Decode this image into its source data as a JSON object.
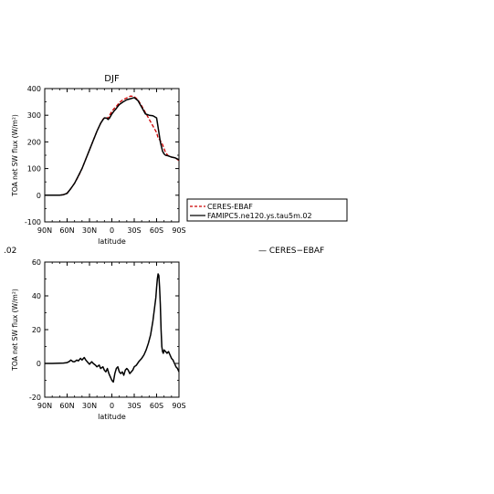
{
  "chart_data": [
    {
      "type": "line",
      "title": "DJF",
      "xlabel": "latitude",
      "ylabel": "TOA net SW flux (W/m²)",
      "xlim": [
        -90,
        90
      ],
      "ylim": [
        -100,
        400
      ],
      "x_ticks": [
        -90,
        -60,
        -30,
        0,
        30,
        60,
        90
      ],
      "x_tick_labels": [
        "90N",
        "60N",
        "30N",
        "0",
        "30S",
        "60S",
        "90S"
      ],
      "y_ticks": [
        -100,
        0,
        100,
        200,
        300,
        400
      ],
      "legend_position": "right",
      "series": [
        {
          "name": "CERES-EBAF",
          "color": "#cc0000",
          "dash": "dashed",
          "x": [
            -90,
            -80,
            -70,
            -65,
            -60,
            -55,
            -50,
            -45,
            -40,
            -35,
            -30,
            -25,
            -20,
            -15,
            -12,
            -10,
            -7,
            -5,
            -3,
            0,
            3,
            5,
            8,
            10,
            15,
            20,
            25,
            30,
            35,
            40,
            45,
            50,
            55,
            60,
            62,
            65,
            68,
            70,
            72,
            75,
            78,
            80,
            85,
            90
          ],
          "y": [
            0,
            0,
            0,
            2,
            8,
            25,
            45,
            70,
            100,
            135,
            170,
            205,
            240,
            270,
            285,
            290,
            292,
            288,
            300,
            315,
            325,
            330,
            340,
            348,
            358,
            365,
            372,
            370,
            358,
            335,
            310,
            285,
            260,
            235,
            215,
            205,
            190,
            175,
            160,
            150,
            145,
            143,
            140,
            130
          ]
        },
        {
          "name": "FAMIPC5.ne120.ys.tau5m.02",
          "color": "#000000",
          "dash": "solid",
          "x": [
            -90,
            -80,
            -70,
            -65,
            -60,
            -55,
            -50,
            -45,
            -40,
            -35,
            -30,
            -25,
            -20,
            -15,
            -12,
            -10,
            -7,
            -5,
            -3,
            0,
            3,
            5,
            8,
            10,
            15,
            20,
            25,
            30,
            35,
            40,
            45,
            50,
            55,
            60,
            62,
            65,
            68,
            70,
            72,
            75,
            78,
            80,
            85,
            90
          ],
          "y": [
            0,
            0,
            0,
            2,
            7,
            25,
            45,
            72,
            100,
            135,
            170,
            205,
            240,
            270,
            283,
            290,
            289,
            284,
            290,
            305,
            316,
            322,
            333,
            340,
            350,
            358,
            362,
            366,
            355,
            330,
            305,
            300,
            298,
            290,
            255,
            200,
            165,
            155,
            150,
            148,
            145,
            143,
            140,
            133
          ]
        }
      ]
    },
    {
      "type": "line",
      "title": "",
      "xlabel": "latitude",
      "ylabel": "TOA net SW flux (W/m²)",
      "xlim": [
        -90,
        90
      ],
      "ylim": [
        -20,
        60
      ],
      "x_ticks": [
        -90,
        -60,
        -30,
        0,
        30,
        60,
        90
      ],
      "x_tick_labels": [
        "90N",
        "60N",
        "30N",
        "0",
        "30S",
        "60S",
        "90S"
      ],
      "y_ticks": [
        -20,
        0,
        20,
        40,
        60
      ],
      "series": [
        {
          "color": "#000000",
          "dash": "solid",
          "x": [
            -90,
            -80,
            -70,
            -65,
            -60,
            -57,
            -55,
            -52,
            -50,
            -47,
            -45,
            -42,
            -40,
            -37,
            -35,
            -32,
            -30,
            -27,
            -25,
            -22,
            -20,
            -17,
            -15,
            -12,
            -10,
            -8,
            -6,
            -4,
            -2,
            0,
            2,
            4,
            6,
            8,
            10,
            12,
            14,
            16,
            18,
            20,
            22,
            24,
            26,
            28,
            30,
            33,
            36,
            40,
            43,
            46,
            49,
            52,
            55,
            57,
            59,
            60,
            61,
            62,
            63,
            64,
            65,
            66,
            67,
            68,
            69,
            70,
            72,
            74,
            76,
            78,
            80,
            82,
            84,
            86,
            88,
            90
          ],
          "y": [
            0,
            0,
            0.1,
            0.2,
            0.5,
            1.2,
            2,
            1,
            1,
            2,
            1.5,
            3,
            2,
            3.5,
            2,
            0.5,
            -0.5,
            1,
            0,
            -1,
            -2,
            -1,
            -3,
            -2,
            -4,
            -5,
            -3,
            -6,
            -8,
            -10,
            -11,
            -6,
            -3,
            -2,
            -5,
            -6,
            -5,
            -7,
            -4,
            -3,
            -4,
            -6,
            -5,
            -4,
            -2,
            -1,
            1,
            3,
            5,
            8,
            12,
            17,
            25,
            32,
            39,
            45,
            50,
            53,
            52,
            45,
            35,
            20,
            10,
            7,
            6,
            8,
            7,
            6,
            7,
            5,
            3,
            2,
            0,
            -2,
            -3,
            -5
          ]
        }
      ]
    }
  ],
  "extras": {
    "legend_orphan": "— CERES−EBAF",
    "left_fragment": ".02"
  }
}
